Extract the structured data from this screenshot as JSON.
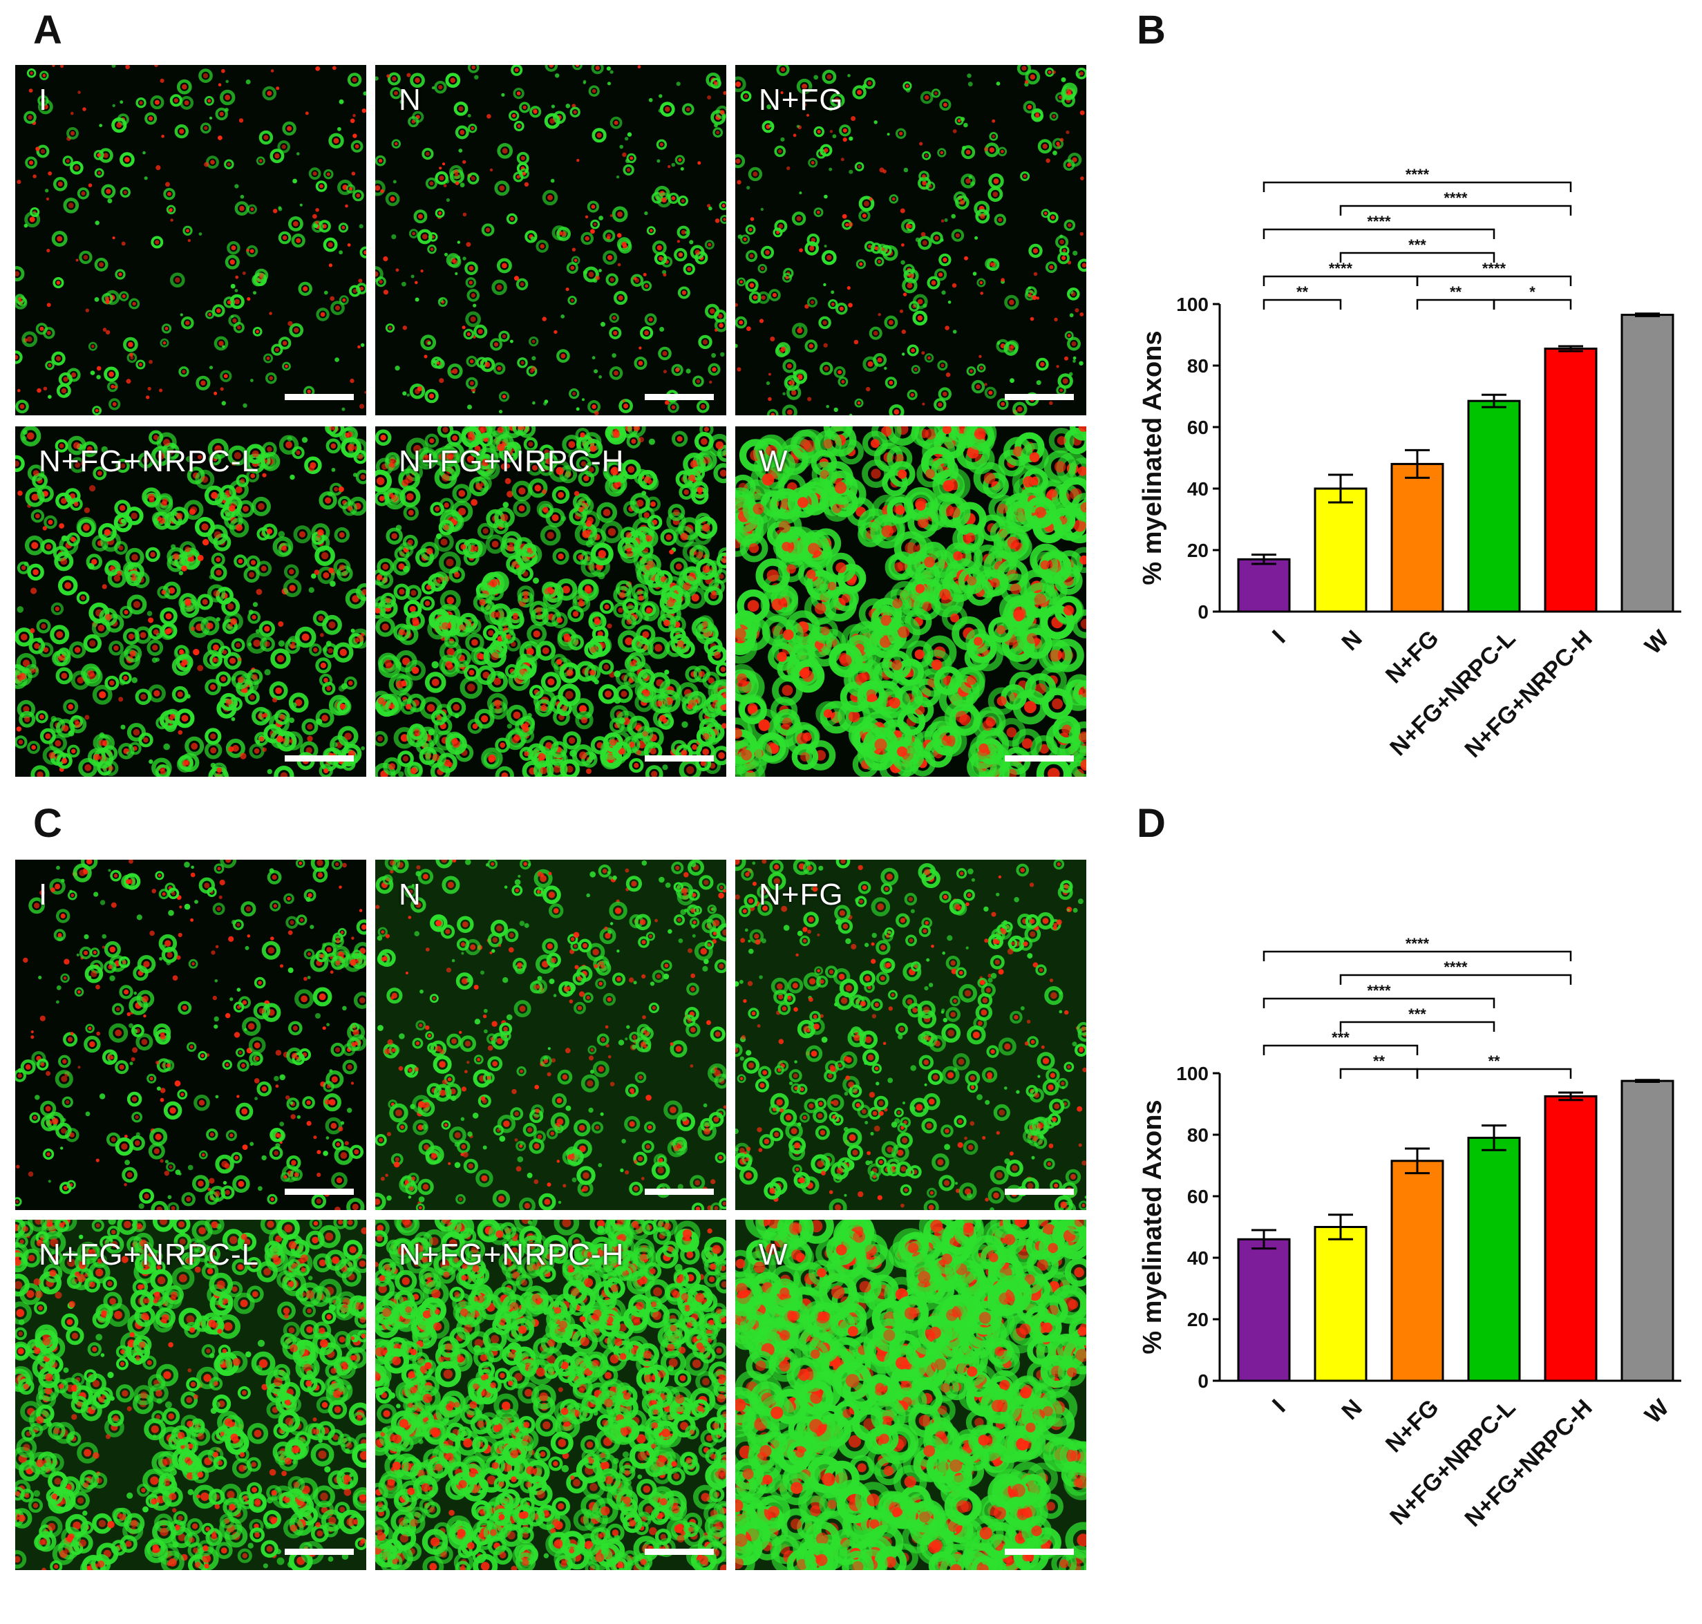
{
  "panels": {
    "a": "A",
    "b": "B",
    "c": "C",
    "d": "D"
  },
  "images": {
    "A": [
      "I",
      "N",
      "N+FG",
      "N+FG+NRPC-L",
      "N+FG+NRPC-H",
      "W"
    ],
    "C": [
      "I",
      "N",
      "N+FG",
      "N+FG+NRPC-L",
      "N+FG+NRPC-H",
      "W"
    ]
  },
  "colors": {
    "I": "#7d1d9a",
    "N": "#ffff00",
    "N+FG": "#ff8000",
    "N+FG+NRPC-L": "#00c400",
    "N+FG+NRPC-H": "#ff0000",
    "W": "#8c8c8c",
    "myelin": "#2ee02e",
    "axon": "#ff2a10"
  },
  "chart_data": [
    {
      "panel": "B",
      "type": "bar",
      "ylabel": "% myelinated Axons",
      "categories": [
        "I",
        "N",
        "N+FG",
        "N+FG+NRPC-L",
        "N+FG+NRPC-H",
        "W"
      ],
      "values": [
        17,
        40,
        48,
        68.5,
        85.5,
        96.5
      ],
      "errors": [
        1.5,
        4.5,
        4.5,
        2,
        0.8,
        0.4
      ],
      "ylim": [
        0,
        100
      ],
      "yticks": [
        "0",
        "20",
        "40",
        "60",
        "80",
        "100"
      ],
      "comparisons": [
        {
          "from": "I",
          "to": "N",
          "label": "**"
        },
        {
          "from": "I",
          "to": "N+FG",
          "label": "****"
        },
        {
          "from": "I",
          "to": "N+FG+NRPC-L",
          "label": "****"
        },
        {
          "from": "I",
          "to": "N+FG+NRPC-H",
          "label": "****"
        },
        {
          "from": "N",
          "to": "N+FG+NRPC-L",
          "label": "***"
        },
        {
          "from": "N",
          "to": "N+FG+NRPC-H",
          "label": "****"
        },
        {
          "from": "N+FG",
          "to": "N+FG+NRPC-L",
          "label": "**"
        },
        {
          "from": "N+FG+NRPC-L",
          "to": "N+FG+NRPC-H",
          "label": "*"
        },
        {
          "from": "N+FG",
          "to": "N+FG+NRPC-H",
          "label": "****"
        }
      ]
    },
    {
      "panel": "D",
      "type": "bar",
      "ylabel": "% myelinated Axons",
      "categories": [
        "I",
        "N",
        "N+FG",
        "N+FG+NRPC-L",
        "N+FG+NRPC-H",
        "W"
      ],
      "values": [
        46,
        50,
        71.5,
        79,
        92.5,
        97.5
      ],
      "errors": [
        3,
        4,
        4,
        4,
        1.2,
        0.3
      ],
      "ylim": [
        0,
        100
      ],
      "yticks": [
        "0",
        "20",
        "40",
        "60",
        "80",
        "100"
      ],
      "comparisons": [
        {
          "from": "I",
          "to": "N+FG",
          "label": "***"
        },
        {
          "from": "I",
          "to": "N+FG+NRPC-L",
          "label": "****"
        },
        {
          "from": "I",
          "to": "N+FG+NRPC-H",
          "label": "****"
        },
        {
          "from": "N",
          "to": "N+FG",
          "label": "**"
        },
        {
          "from": "N",
          "to": "N+FG+NRPC-L",
          "label": "***"
        },
        {
          "from": "N",
          "to": "N+FG+NRPC-H",
          "label": "****"
        },
        {
          "from": "N+FG",
          "to": "N+FG+NRPC-H",
          "label": "**"
        }
      ]
    }
  ]
}
